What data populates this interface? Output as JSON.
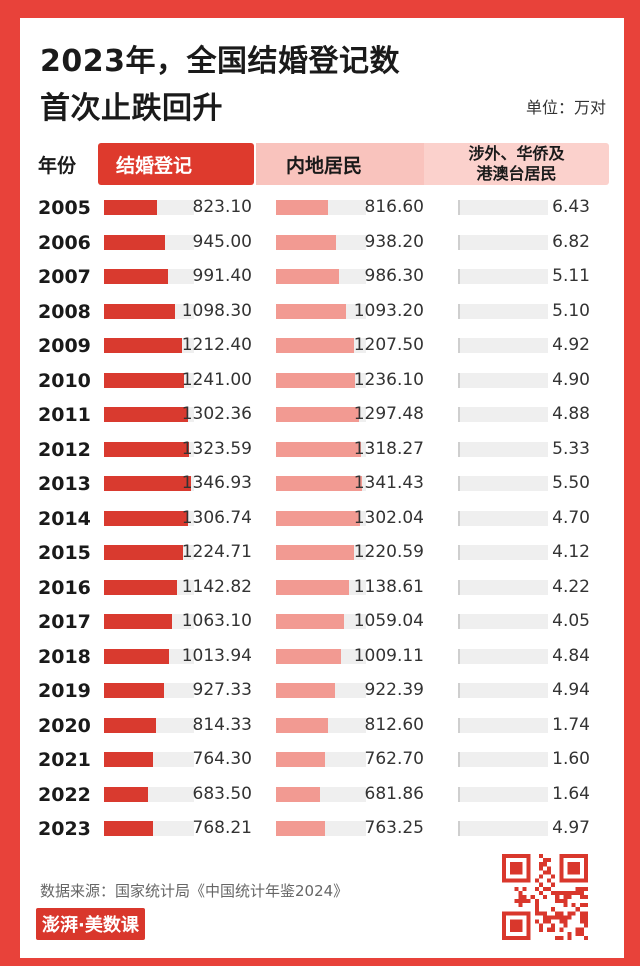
{
  "title": {
    "line1": "2023年，全国结婚登记数",
    "line2": "首次止跌回升"
  },
  "unit": "单位：万对",
  "headers": {
    "year": "年份",
    "marriage": "结婚登记",
    "mainland": "内地居民",
    "foreign": "涉外、华侨及\n港澳台居民"
  },
  "source": "数据来源：国家统计局《中国统计年鉴2024》",
  "logo_text": "澎湃·美数课",
  "colors": {
    "marriage": "#d93a2f",
    "mainland": "#f29a92",
    "foreign": "#cfcfcf",
    "frame": "#e8423a"
  },
  "chart_data": {
    "type": "bar",
    "title": "2023年，全国结婚登记数首次止跌回升",
    "unit": "万对",
    "categories": [
      "2005",
      "2006",
      "2007",
      "2008",
      "2009",
      "2010",
      "2011",
      "2012",
      "2013",
      "2014",
      "2015",
      "2016",
      "2017",
      "2018",
      "2019",
      "2020",
      "2021",
      "2022",
      "2023"
    ],
    "series": [
      {
        "name": "结婚登记",
        "values": [
          823.1,
          945.0,
          991.4,
          1098.3,
          1212.4,
          1241.0,
          1302.36,
          1323.59,
          1346.93,
          1306.74,
          1224.71,
          1142.82,
          1063.1,
          1013.94,
          927.33,
          814.33,
          764.3,
          683.5,
          768.21
        ],
        "labels": [
          "823.10",
          "945.00",
          "991.40",
          "1098.30",
          "1212.40",
          "1241.00",
          "1302.36",
          "1323.59",
          "1346.93",
          "1306.74",
          "1224.71",
          "1142.82",
          "1063.10",
          "1013.94",
          "927.33",
          "814.33",
          "764.30",
          "683.50",
          "768.21"
        ]
      },
      {
        "name": "内地居民",
        "values": [
          816.6,
          938.2,
          986.3,
          1093.2,
          1207.5,
          1236.1,
          1297.48,
          1318.27,
          1341.43,
          1302.04,
          1220.59,
          1138.61,
          1059.04,
          1009.11,
          922.39,
          812.6,
          762.7,
          681.86,
          763.25
        ],
        "labels": [
          "816.60",
          "938.20",
          "986.30",
          "1093.20",
          "1207.50",
          "1236.10",
          "1297.48",
          "1318.27",
          "1341.43",
          "1302.04",
          "1220.59",
          "1138.61",
          "1059.04",
          "1009.11",
          "922.39",
          "812.60",
          "762.70",
          "681.86",
          "763.25"
        ]
      },
      {
        "name": "涉外、华侨及港澳台居民",
        "values": [
          6.43,
          6.82,
          5.11,
          5.1,
          4.92,
          4.9,
          4.88,
          5.33,
          5.5,
          4.7,
          4.12,
          4.22,
          4.05,
          4.84,
          4.94,
          1.74,
          1.6,
          1.64,
          4.97
        ],
        "labels": [
          "6.43",
          "6.82",
          "5.11",
          "5.10",
          "4.92",
          "4.90",
          "4.88",
          "5.33",
          "5.50",
          "4.70",
          "4.12",
          "4.22",
          "4.05",
          "4.84",
          "4.94",
          "1.74",
          "1.60",
          "1.64",
          "4.97"
        ]
      }
    ]
  }
}
